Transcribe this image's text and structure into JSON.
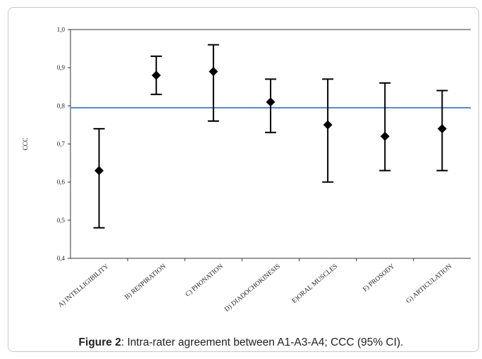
{
  "chart_data": {
    "type": "scatter",
    "ylabel": "CCC",
    "ylim": [
      0.4,
      1.0
    ],
    "yticks": [
      "0,4",
      "0,5",
      "0,6",
      "0,7",
      "0,8",
      "0,9",
      "1,0"
    ],
    "categories": [
      "A) INTELLIGIBILITY",
      "B) RESPIRATION",
      "C) PHONATION",
      "D) DIADOCHOKINESIS",
      "E)ORAL MUSCLES",
      "F) PROSODY",
      "G) ARTICULATION"
    ],
    "values": [
      0.63,
      0.88,
      0.89,
      0.81,
      0.75,
      0.72,
      0.74
    ],
    "ci_low": [
      0.48,
      0.83,
      0.76,
      0.73,
      0.6,
      0.63,
      0.63
    ],
    "ci_high": [
      0.74,
      0.93,
      0.96,
      0.87,
      0.87,
      0.86,
      0.84
    ],
    "reference_line": 0.795,
    "grid": false,
    "colors": {
      "reference_line": "#5b8fc9",
      "markers": "#000000"
    }
  },
  "caption": {
    "label": "Figure 2",
    "text": ": Intra-rater agreement between A1-A3-A4; CCC (95% CI)."
  }
}
